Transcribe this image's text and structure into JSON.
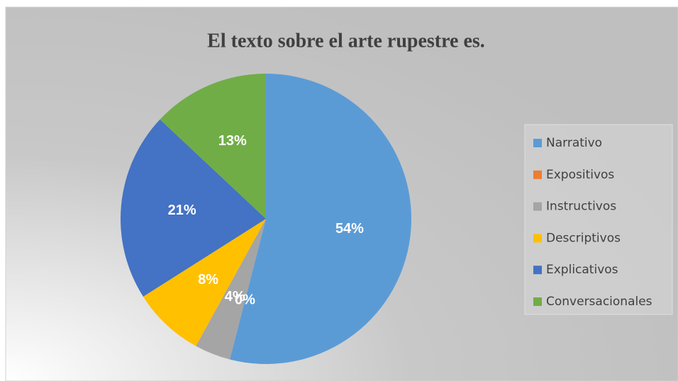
{
  "chart_data": {
    "type": "pie",
    "title": "El texto sobre el arte rupestre es.",
    "categories": [
      "Narrativo",
      "Expositivos",
      "Instructivos",
      "Descriptivos",
      "Explicativos",
      "Conversacionales"
    ],
    "values": [
      54,
      0,
      4,
      8,
      21,
      13
    ],
    "value_labels": [
      "54%",
      "0%",
      "4%",
      "8%",
      "21%",
      "13%"
    ],
    "colors": [
      "#5b9bd5",
      "#ed7d31",
      "#a5a5a5",
      "#ffc000",
      "#4472c4",
      "#70ad47"
    ],
    "legend": "right"
  }
}
